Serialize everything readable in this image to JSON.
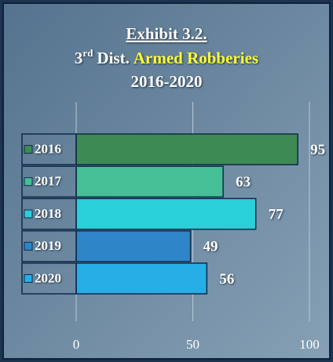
{
  "chart_data": {
    "type": "bar",
    "orientation": "horizontal",
    "title": "Exhibit 3.2.",
    "subtitle": {
      "number": "3",
      "suffix": "rd",
      "text": "Dist.",
      "highlight": "Armed Robberies"
    },
    "period": "2016-2020",
    "categories": [
      "2016",
      "2017",
      "2018",
      "2019",
      "2020"
    ],
    "values": [
      95,
      63,
      77,
      49,
      56
    ],
    "colors": [
      "#3d8a55",
      "#45bf96",
      "#2ad0d8",
      "#2e86c8",
      "#27aee6"
    ],
    "xlim": [
      0,
      100
    ],
    "xticks": [
      0,
      50,
      100
    ],
    "grid": true
  }
}
